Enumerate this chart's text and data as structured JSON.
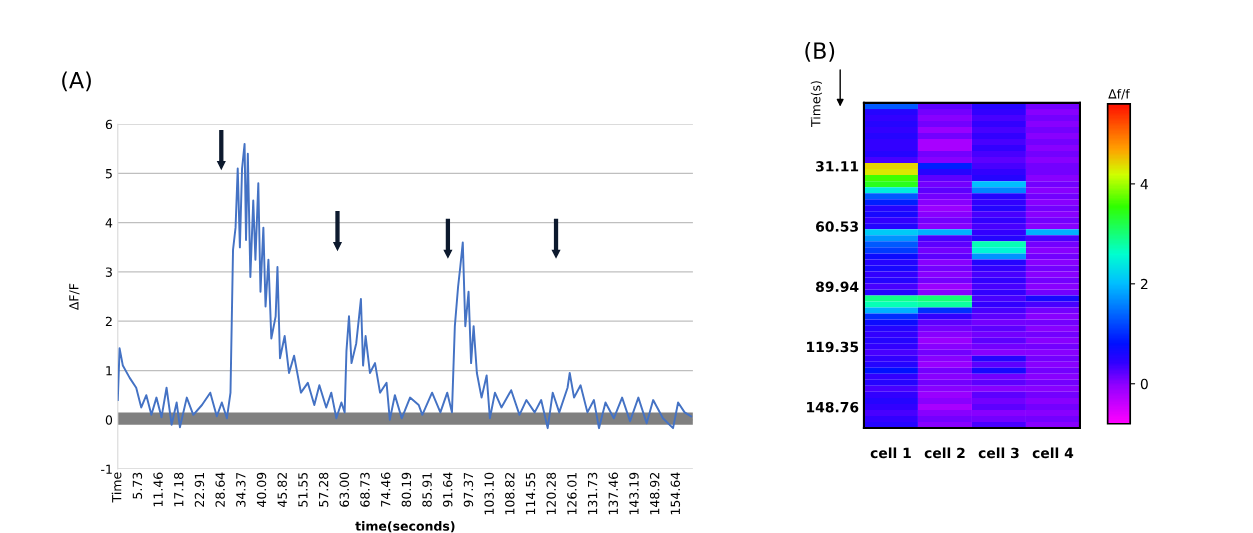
{
  "chart_data": [
    {
      "type": "line",
      "title": "(A)",
      "xlabel": "time(seconds)",
      "ylabel": "ΔF/F",
      "xlim": [
        0,
        159.2
      ],
      "ylim": [
        -1,
        6
      ],
      "yticks": [
        -1,
        0,
        1,
        2,
        3,
        4,
        5,
        6
      ],
      "xticks": [
        {
          "value": 0,
          "label": "Time"
        },
        5.73,
        11.46,
        17.18,
        22.91,
        28.64,
        34.37,
        40.09,
        45.82,
        51.55,
        57.28,
        {
          "value": 63.0,
          "label": "63.00"
        },
        68.73,
        74.46,
        80.19,
        85.91,
        91.64,
        97.37,
        {
          "value": 103.1,
          "label": "103.10"
        },
        108.82,
        114.55,
        120.28,
        126.01,
        131.73,
        137.46,
        143.19,
        148.92,
        154.64
      ],
      "grid": "y",
      "legend": false,
      "bands": [
        {
          "axis": "y",
          "from": -0.1,
          "to": 0.15,
          "color": "#808080"
        }
      ],
      "series": [
        {
          "color": "#4472c4",
          "x": [
            0,
            0.5,
            1.4,
            3.3,
            5.1,
            6.5,
            7.9,
            9.3,
            10.7,
            12.1,
            13.5,
            14.9,
            16.3,
            17.2,
            19.1,
            20.9,
            23.3,
            25.6,
            27.4,
            28.8,
            30.2,
            31.2,
            31.9,
            32.6,
            33.2,
            33.8,
            34.4,
            35.1,
            35.5,
            36.0,
            36.7,
            37.5,
            38.1,
            38.9,
            39.5,
            40.3,
            40.9,
            41.7,
            42.5,
            43.7,
            44.2,
            44.9,
            46.2,
            47.4,
            48.8,
            50.7,
            52.6,
            54.4,
            55.8,
            57.7,
            59.1,
            60.5,
            61.9,
            62.8,
            63.3,
            64.0,
            64.7,
            66.0,
            66.8,
            67.3,
            67.9,
            68.6,
            69.8,
            71.2,
            72.6,
            74.4,
            75.3,
            76.7,
            78.6,
            80.9,
            83.3,
            84.3,
            87.0,
            89.3,
            91.2,
            92.5,
            93.3,
            94.2,
            94.8,
            95.5,
            96.2,
            97.1,
            97.8,
            98.5,
            99.4,
            100.7,
            102.1,
            103.0,
            104.4,
            106.2,
            108.9,
            111.2,
            113.1,
            115.4,
            117.2,
            119.0,
            120.4,
            122.2,
            124.5,
            125.1,
            126.3,
            128.1,
            130.0,
            131.8,
            133.2,
            135.0,
            137.3,
            139.6,
            141.8,
            144.1,
            146.4,
            148.2,
            150.9,
            153.7,
            155.1,
            156.9,
            158.7
          ],
          "values": [
            0.4,
            1.45,
            1.1,
            0.85,
            0.65,
            0.25,
            0.5,
            0.1,
            0.45,
            0.05,
            0.65,
            -0.1,
            0.35,
            -0.15,
            0.45,
            0.1,
            0.3,
            0.55,
            0.07,
            0.35,
            0.03,
            0.55,
            3.45,
            3.9,
            5.1,
            3.5,
            5.1,
            5.6,
            3.65,
            5.4,
            2.9,
            4.45,
            3.25,
            4.8,
            2.6,
            3.9,
            2.3,
            3.25,
            1.65,
            2.1,
            3.1,
            1.25,
            1.7,
            0.95,
            1.3,
            0.55,
            0.75,
            0.3,
            0.7,
            0.25,
            0.55,
            0.03,
            0.35,
            0.15,
            1.4,
            2.1,
            1.15,
            1.55,
            2.1,
            2.45,
            1.1,
            1.7,
            0.95,
            1.15,
            0.55,
            0.75,
            0.0,
            0.5,
            0.03,
            0.45,
            0.3,
            0.1,
            0.55,
            0.15,
            0.55,
            0.15,
            1.9,
            2.7,
            3.1,
            3.6,
            1.9,
            2.6,
            1.15,
            1.9,
            0.95,
            0.45,
            0.9,
            0.03,
            0.55,
            0.25,
            0.6,
            0.1,
            0.4,
            0.15,
            0.4,
            -0.17,
            0.55,
            0.15,
            0.65,
            0.95,
            0.45,
            0.7,
            0.15,
            0.4,
            -0.17,
            0.35,
            0.03,
            0.45,
            -0.03,
            0.45,
            -0.07,
            0.4,
            0.03,
            -0.17,
            0.35,
            0.15,
            0.07
          ]
        }
      ]
    },
    {
      "type": "heatmap",
      "title": "(B)",
      "ylabel": "Time(s)",
      "clabel": "Δf/f",
      "categories": [
        "cell 1",
        "cell 2",
        "cell 3",
        "cell 4"
      ],
      "y_categories": [
        null,
        null,
        null,
        null,
        null,
        null,
        null,
        null,
        null,
        null,
        "31.11",
        null,
        null,
        null,
        null,
        null,
        null,
        null,
        null,
        null,
        "60.53",
        null,
        null,
        null,
        null,
        null,
        null,
        null,
        null,
        null,
        "89.94",
        null,
        null,
        null,
        null,
        null,
        null,
        null,
        null,
        null,
        "119.35",
        null,
        null,
        null,
        null,
        null,
        null,
        null,
        null,
        null,
        "148.76",
        null,
        null,
        null
      ],
      "clim": [
        -0.8,
        5.6
      ],
      "cticks": [
        0,
        2,
        4
      ],
      "cells": [
        [
          1.3,
          0.2,
          0.5,
          0.1
        ],
        [
          0.5,
          0.1,
          0.4,
          0.0
        ],
        [
          0.4,
          0.0,
          0.3,
          0.1
        ],
        [
          0.5,
          0.1,
          0.4,
          0.0
        ],
        [
          0.4,
          -0.1,
          0.3,
          0.1
        ],
        [
          0.5,
          0.1,
          0.4,
          0.0
        ],
        [
          0.4,
          -0.2,
          0.3,
          0.1
        ],
        [
          0.4,
          -0.2,
          0.4,
          0.0
        ],
        [
          0.5,
          0.1,
          0.3,
          0.1
        ],
        [
          0.3,
          0.0,
          0.2,
          0.0
        ],
        [
          4.4,
          0.9,
          0.3,
          0.1
        ],
        [
          4.3,
          0.5,
          0.4,
          0.1
        ],
        [
          3.6,
          0.2,
          0.5,
          0.0
        ],
        [
          3.4,
          0.1,
          2.0,
          0.1
        ],
        [
          2.4,
          0.2,
          1.6,
          0.0
        ],
        [
          1.3,
          0.1,
          0.5,
          0.1
        ],
        [
          0.9,
          0.0,
          0.4,
          0.0
        ],
        [
          0.5,
          -0.1,
          0.5,
          0.1
        ],
        [
          0.6,
          0.0,
          0.3,
          0.0
        ],
        [
          0.4,
          0.1,
          0.4,
          0.1
        ],
        [
          0.5,
          0.0,
          0.3,
          0.0
        ],
        [
          2.1,
          1.9,
          0.4,
          1.9
        ],
        [
          1.7,
          0.3,
          0.5,
          0.3
        ],
        [
          1.3,
          0.2,
          2.7,
          0.1
        ],
        [
          1.1,
          0.1,
          2.5,
          0.0
        ],
        [
          0.7,
          0.2,
          1.7,
          0.1
        ],
        [
          0.5,
          0.0,
          0.5,
          0.0
        ],
        [
          0.6,
          0.1,
          0.4,
          0.1
        ],
        [
          0.4,
          0.0,
          0.3,
          0.0
        ],
        [
          0.5,
          0.1,
          0.4,
          0.1
        ],
        [
          0.3,
          -0.1,
          0.3,
          0.0
        ],
        [
          0.5,
          0.0,
          0.4,
          0.1
        ],
        [
          2.9,
          3.0,
          0.3,
          0.6
        ],
        [
          2.7,
          2.8,
          0.4,
          0.3
        ],
        [
          1.9,
          1.0,
          0.3,
          0.1
        ],
        [
          1.0,
          0.4,
          0.2,
          0.0
        ],
        [
          0.7,
          0.2,
          0.1,
          0.1
        ],
        [
          0.5,
          0.1,
          0.2,
          0.0
        ],
        [
          0.4,
          0.0,
          0.1,
          0.1
        ],
        [
          0.5,
          -0.1,
          0.2,
          0.0
        ],
        [
          0.4,
          0.0,
          0.1,
          0.1
        ],
        [
          0.3,
          0.1,
          0.0,
          0.0
        ],
        [
          0.4,
          0.0,
          0.5,
          0.1
        ],
        [
          0.5,
          -0.1,
          0.2,
          0.0
        ],
        [
          0.8,
          0.1,
          0.6,
          0.1
        ],
        [
          0.4,
          0.0,
          0.1,
          0.0
        ],
        [
          0.5,
          0.1,
          0.2,
          0.1
        ],
        [
          0.3,
          0.0,
          0.0,
          0.0
        ],
        [
          0.4,
          -0.1,
          0.2,
          0.1
        ],
        [
          0.5,
          0.0,
          0.1,
          0.0
        ],
        [
          0.4,
          -0.2,
          0.2,
          0.1
        ],
        [
          0.3,
          0.0,
          0.0,
          0.0
        ],
        [
          0.4,
          0.1,
          0.1,
          0.1
        ],
        [
          0.5,
          0.0,
          0.3,
          0.0
        ]
      ]
    }
  ]
}
